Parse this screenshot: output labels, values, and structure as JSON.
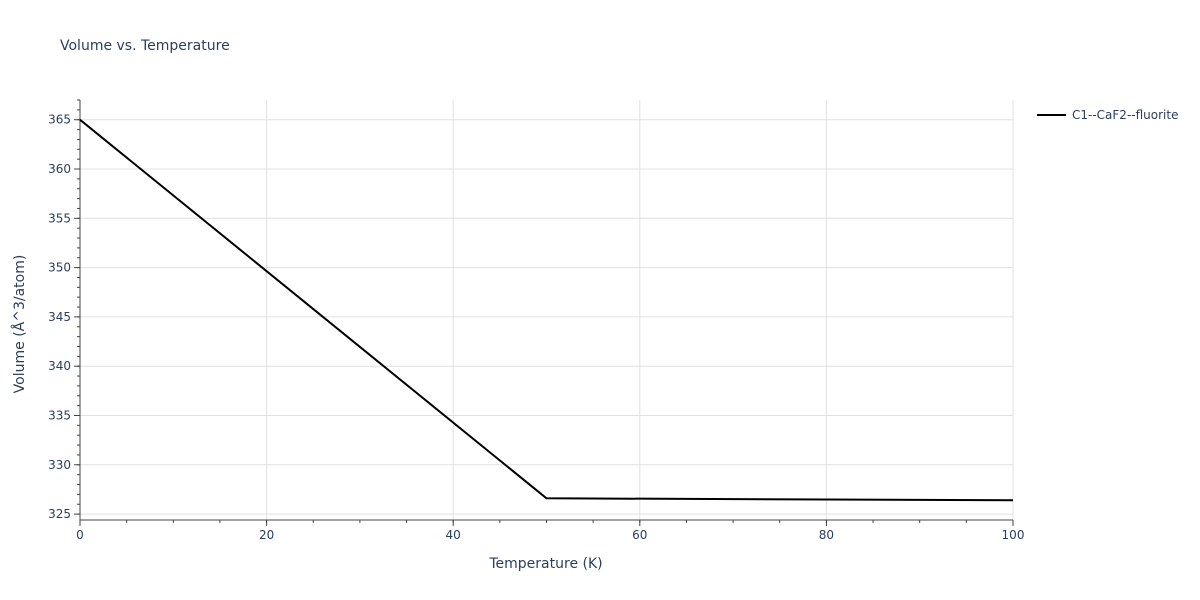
{
  "chart_data": {
    "type": "line",
    "title": "Volume vs. Temperature",
    "xlabel": "Temperature (K)",
    "ylabel": "Volume (Å^3/atom)",
    "xlim": [
      0,
      100
    ],
    "ylim": [
      324.4,
      367.0
    ],
    "x_ticks": [
      0,
      20,
      40,
      60,
      80,
      100
    ],
    "y_ticks": [
      325,
      330,
      335,
      340,
      345,
      350,
      355,
      360,
      365
    ],
    "x_minor_step": 5,
    "y_minor_step": 1,
    "grid": true,
    "legend_position": "top-right",
    "series": [
      {
        "name": "C1--CaF2--fluorite",
        "color": "#000000",
        "x": [
          0,
          50,
          100
        ],
        "y": [
          365.0,
          326.6,
          326.4
        ]
      }
    ]
  }
}
